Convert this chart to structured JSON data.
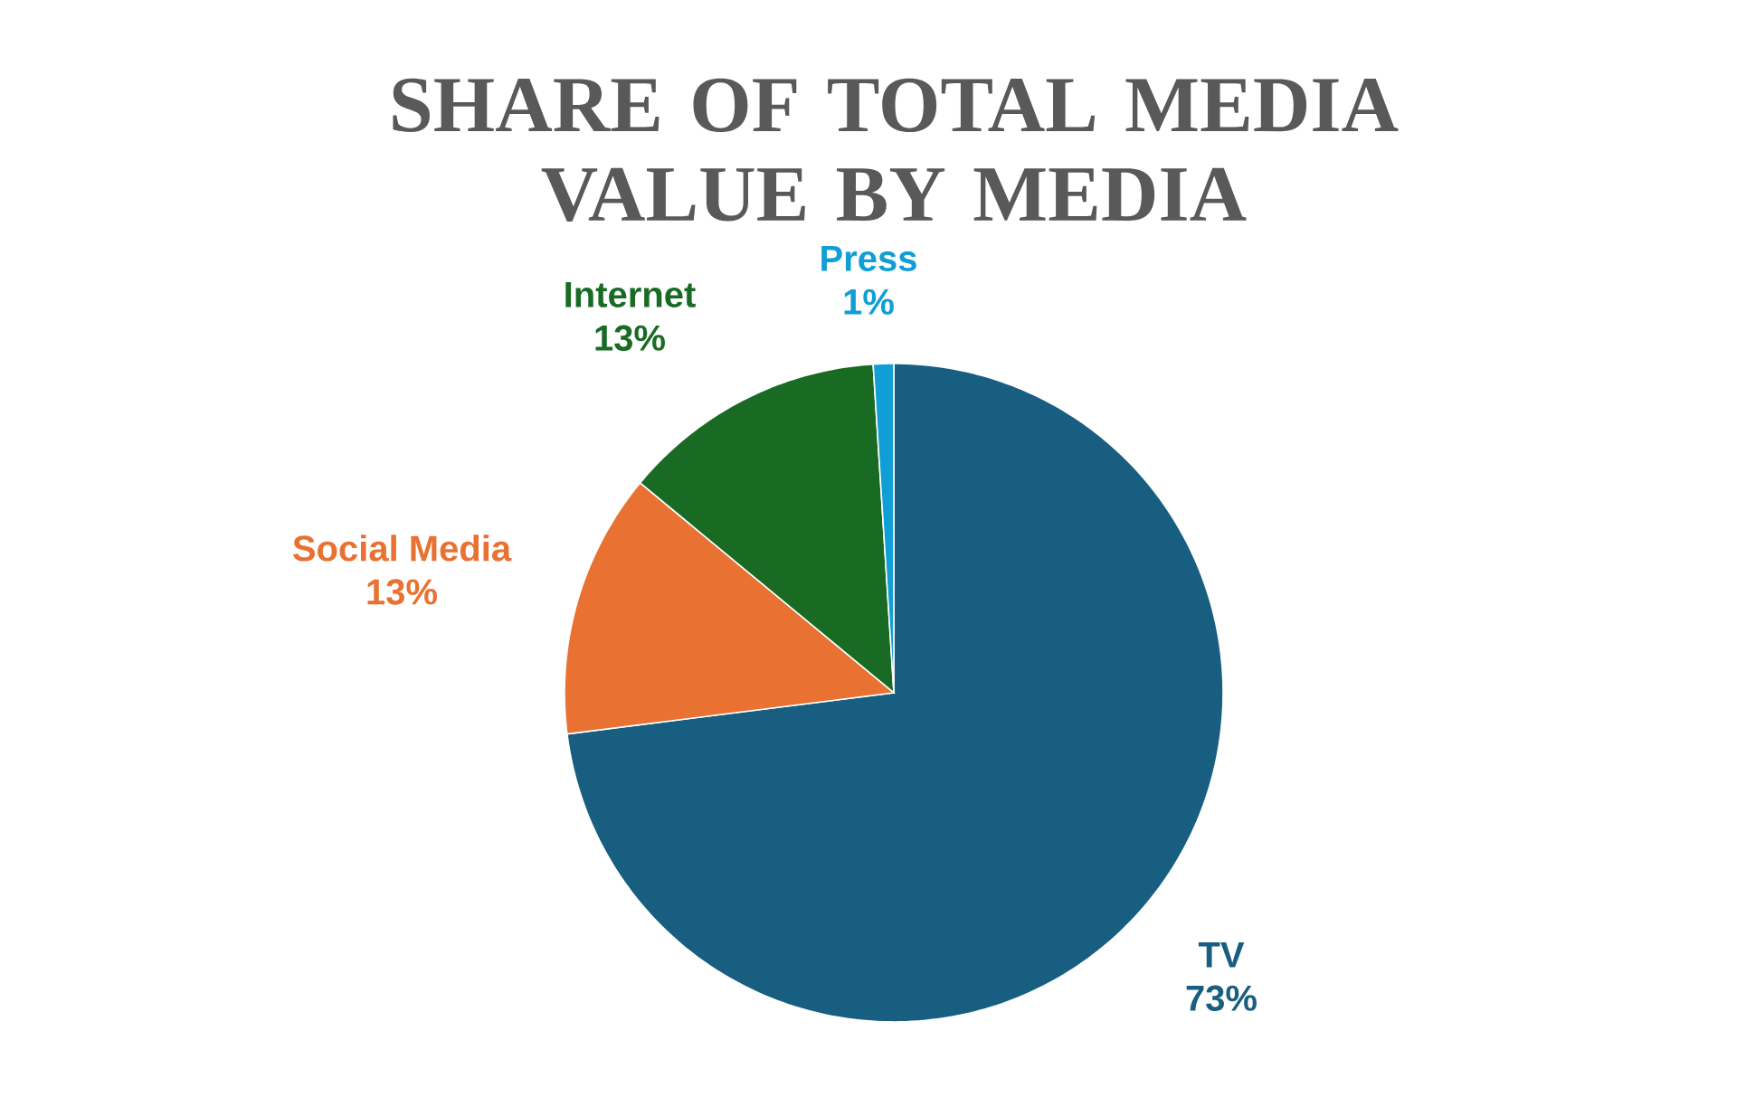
{
  "chart_data": {
    "type": "pie",
    "title": "SHARE OF TOTAL MEDIA VALUE BY MEDIA",
    "categories": [
      "TV",
      "Social Media",
      "Internet",
      "Press"
    ],
    "values": [
      73,
      13,
      13,
      1
    ],
    "colors": [
      "#175e80",
      "#e97132",
      "#196b24",
      "#0f9ed5"
    ],
    "value_labels": [
      "73%",
      "13%",
      "13%",
      "1%"
    ]
  }
}
